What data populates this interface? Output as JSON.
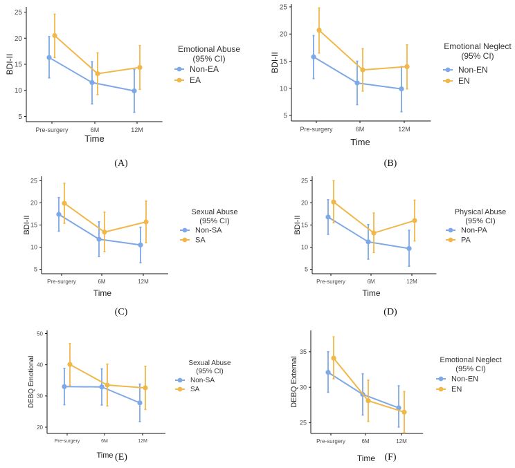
{
  "colors": {
    "non_group": "#7ea8e6",
    "group": "#f0b84a",
    "axis": "#111111"
  },
  "chart_data": [
    {
      "panel_label": "(A)",
      "type": "line",
      "categories": [
        "Pre-surgery",
        "6M",
        "12M"
      ],
      "xlabel": "Time",
      "ylabel": "BDI-II",
      "ylim": [
        4,
        26
      ],
      "yticks": [
        5,
        10,
        15,
        20,
        25
      ],
      "legend": {
        "title": "Emotional Abuse\n(95% CI)",
        "position": "right"
      },
      "series": [
        {
          "name": "Non-EA",
          "color": "#7ea8e6",
          "values": [
            16.3,
            11.5,
            9.9
          ],
          "ci_low": [
            12.4,
            7.4,
            5.8
          ],
          "ci_high": [
            20.3,
            15.5,
            14.0
          ]
        },
        {
          "name": "EA",
          "color": "#f0b84a",
          "values": [
            20.5,
            13.2,
            14.4
          ],
          "ci_low": [
            16.3,
            9.2,
            10.2
          ],
          "ci_high": [
            24.6,
            17.2,
            18.6
          ]
        }
      ]
    },
    {
      "panel_label": "(B)",
      "type": "line",
      "categories": [
        "Pre-surgery",
        "6M",
        "12M"
      ],
      "xlabel": "Time",
      "ylabel": "BDI-II",
      "ylim": [
        4,
        25.5
      ],
      "yticks": [
        5,
        10,
        15,
        20,
        25
      ],
      "legend": {
        "title": "Emotional Neglect\n(95% CI)",
        "position": "right"
      },
      "series": [
        {
          "name": "Non-EN",
          "color": "#7ea8e6",
          "values": [
            15.8,
            11.0,
            9.9
          ],
          "ci_low": [
            11.8,
            7.0,
            5.7
          ],
          "ci_high": [
            19.7,
            15.0,
            14.0
          ]
        },
        {
          "name": "EN",
          "color": "#f0b84a",
          "values": [
            20.7,
            13.4,
            14.0
          ],
          "ci_low": [
            16.5,
            9.5,
            9.9
          ],
          "ci_high": [
            24.8,
            17.3,
            18.0
          ]
        }
      ]
    },
    {
      "panel_label": "(C)",
      "type": "line",
      "categories": [
        "Pre-surgery",
        "6M",
        "12M"
      ],
      "xlabel": "Time",
      "ylabel": "BDI-II",
      "ylim": [
        4,
        26
      ],
      "yticks": [
        5,
        10,
        15,
        20,
        25
      ],
      "legend": {
        "title": "Sexual Abuse\n(95% CI)",
        "position": "right"
      },
      "series": [
        {
          "name": "Non-SA",
          "color": "#7ea8e6",
          "values": [
            17.4,
            11.8,
            10.5
          ],
          "ci_low": [
            13.6,
            7.9,
            6.5
          ],
          "ci_high": [
            21.2,
            15.7,
            14.5
          ]
        },
        {
          "name": "SA",
          "color": "#f0b84a",
          "values": [
            19.9,
            13.4,
            15.7
          ],
          "ci_low": [
            15.4,
            9.0,
            11.0
          ],
          "ci_high": [
            24.4,
            17.9,
            20.4
          ]
        }
      ]
    },
    {
      "panel_label": "(D)",
      "type": "line",
      "categories": [
        "Pre-surgery",
        "6M",
        "12M"
      ],
      "xlabel": "Time",
      "ylabel": "BDI-II",
      "ylim": [
        4,
        26
      ],
      "yticks": [
        5,
        10,
        15,
        20,
        25
      ],
      "legend": {
        "title": "Physical Abuse\n(95% CI)",
        "position": "right"
      },
      "series": [
        {
          "name": "Non-PA",
          "color": "#7ea8e6",
          "values": [
            16.8,
            11.2,
            9.7
          ],
          "ci_low": [
            12.9,
            7.3,
            5.7
          ],
          "ci_high": [
            20.7,
            15.1,
            13.8
          ]
        },
        {
          "name": "PA",
          "color": "#f0b84a",
          "values": [
            20.2,
            13.2,
            16.0
          ],
          "ci_low": [
            15.5,
            8.8,
            11.4
          ],
          "ci_high": [
            25.0,
            17.7,
            20.6
          ]
        }
      ]
    },
    {
      "panel_label": "(E)",
      "type": "line",
      "categories": [
        "Pre-surgery",
        "6M",
        "12M"
      ],
      "xlabel": "Time",
      "ylabel": "DEBQ Emotional",
      "ylim": [
        18,
        51
      ],
      "yticks": [
        20,
        30,
        40,
        50
      ],
      "legend": {
        "title": "Sexual Abuse\n(95% CI)",
        "position": "right"
      },
      "series": [
        {
          "name": "Non-SA",
          "color": "#7ea8e6",
          "values": [
            33.0,
            32.9,
            27.8
          ],
          "ci_low": [
            27.2,
            27.1,
            21.8
          ],
          "ci_high": [
            38.8,
            38.7,
            33.8
          ]
        },
        {
          "name": "SA",
          "color": "#f0b84a",
          "values": [
            40.1,
            33.5,
            32.6
          ],
          "ci_low": [
            33.4,
            26.8,
            25.7
          ],
          "ci_high": [
            46.8,
            40.2,
            39.5
          ]
        }
      ]
    },
    {
      "panel_label": "(F)",
      "type": "line",
      "categories": [
        "Pre-surgery",
        "6M",
        "12M"
      ],
      "xlabel": "Time",
      "ylabel": "DEBQ External",
      "ylim": [
        23.5,
        38
      ],
      "yticks": [
        25,
        30,
        35
      ],
      "legend": {
        "title": "Emotional Neglect\n(95% CI)",
        "position": "right"
      },
      "series": [
        {
          "name": "Non-EN",
          "color": "#7ea8e6",
          "values": [
            32.1,
            29.0,
            27.1
          ],
          "ci_low": [
            29.3,
            26.1,
            24.4
          ],
          "ci_high": [
            35.0,
            31.9,
            30.2
          ]
        },
        {
          "name": "EN",
          "color": "#f0b84a",
          "values": [
            34.1,
            28.1,
            26.5
          ],
          "ci_low": [
            31.2,
            25.2,
            23.6
          ],
          "ci_high": [
            37.1,
            31.0,
            29.4
          ]
        }
      ]
    }
  ]
}
